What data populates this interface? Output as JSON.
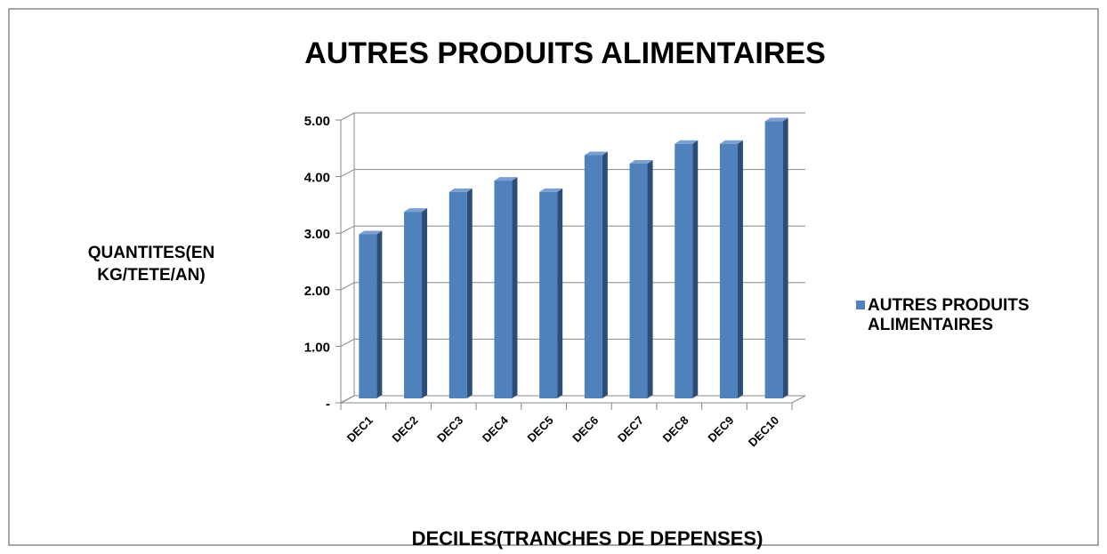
{
  "chart_data": {
    "type": "bar3d",
    "title": "AUTRES PRODUITS ALIMENTAIRES",
    "x_label": "DECILES(TRANCHES DE DEPENSES)",
    "y_label": "QUANTITES(EN KG/TETE/AN)",
    "categories": [
      "DEC1",
      "DEC2",
      "DEC3",
      "DEC4",
      "DEC5",
      "DEC6",
      "DEC7",
      "DEC8",
      "DEC9",
      "DEC10"
    ],
    "series": [
      {
        "name": "AUTRES PRODUITS ALIMENTAIRES",
        "color": "#4f81bd",
        "values": [
          2.9,
          3.3,
          3.65,
          3.85,
          3.65,
          4.3,
          4.15,
          4.5,
          4.5,
          4.9
        ]
      }
    ],
    "ylim": [
      0,
      5
    ],
    "yticks": [
      {
        "value": 0,
        "label": "-"
      },
      {
        "value": 1,
        "label": "1.00"
      },
      {
        "value": 2,
        "label": "2.00"
      },
      {
        "value": 3,
        "label": "3.00"
      },
      {
        "value": 4,
        "label": "4.00"
      },
      {
        "value": 5,
        "label": "5.00"
      }
    ],
    "grid": true,
    "legend": "right"
  }
}
